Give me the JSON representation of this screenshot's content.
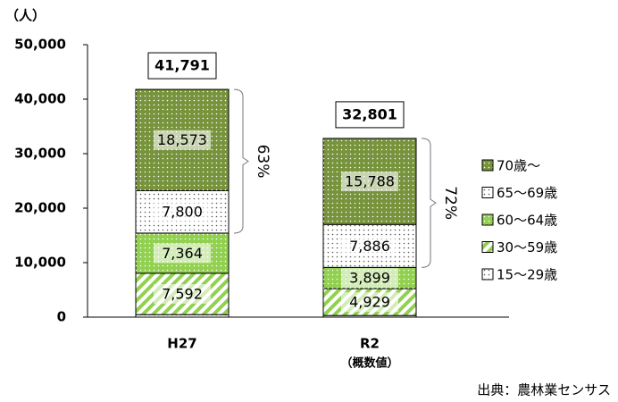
{
  "chart_data": {
    "type": "stacked_bar",
    "y_label": "（人）",
    "categories": [
      "H27",
      "R2"
    ],
    "category_notes": [
      null,
      "（概数値）"
    ],
    "series": [
      {
        "name": "15〜29歳",
        "color": "#ffffff",
        "pattern": "dots",
        "values": [
          462,
          299
        ],
        "value_labels": [
          null,
          null
        ]
      },
      {
        "name": "30〜59歳",
        "color": "#92d050",
        "pattern": "stripes",
        "values": [
          7592,
          4929
        ],
        "value_labels": [
          "7,592",
          "4,929"
        ]
      },
      {
        "name": "60〜64歳",
        "color": "#92d050",
        "pattern": "dots",
        "values": [
          7364,
          3899
        ],
        "value_labels": [
          "7,364",
          "3,899"
        ]
      },
      {
        "name": "65〜69歳",
        "color": "#ffffff",
        "pattern": "dots",
        "values": [
          7800,
          7886
        ],
        "value_labels": [
          "7,800",
          "7,886"
        ]
      },
      {
        "name": "70歳〜",
        "color": "#77933c",
        "pattern": "dots",
        "values": [
          18573,
          15788
        ],
        "value_labels": [
          "18,573",
          "15,788"
        ]
      }
    ],
    "totals": [
      41791,
      32801
    ],
    "total_labels": [
      "41,791",
      "32,801"
    ],
    "brackets": [
      "63%",
      "72%"
    ],
    "ylim": [
      0,
      50000
    ],
    "yticks": [
      0,
      {
        "value": 10000,
        "label": "10,000"
      },
      {
        "value": 20000,
        "label": "20,000"
      },
      {
        "value": 30000,
        "label": "30,000"
      },
      {
        "value": 40000,
        "label": "40,000"
      },
      {
        "value": 50000,
        "label": "50,000"
      }
    ],
    "source": "出典：農林業センサス"
  }
}
